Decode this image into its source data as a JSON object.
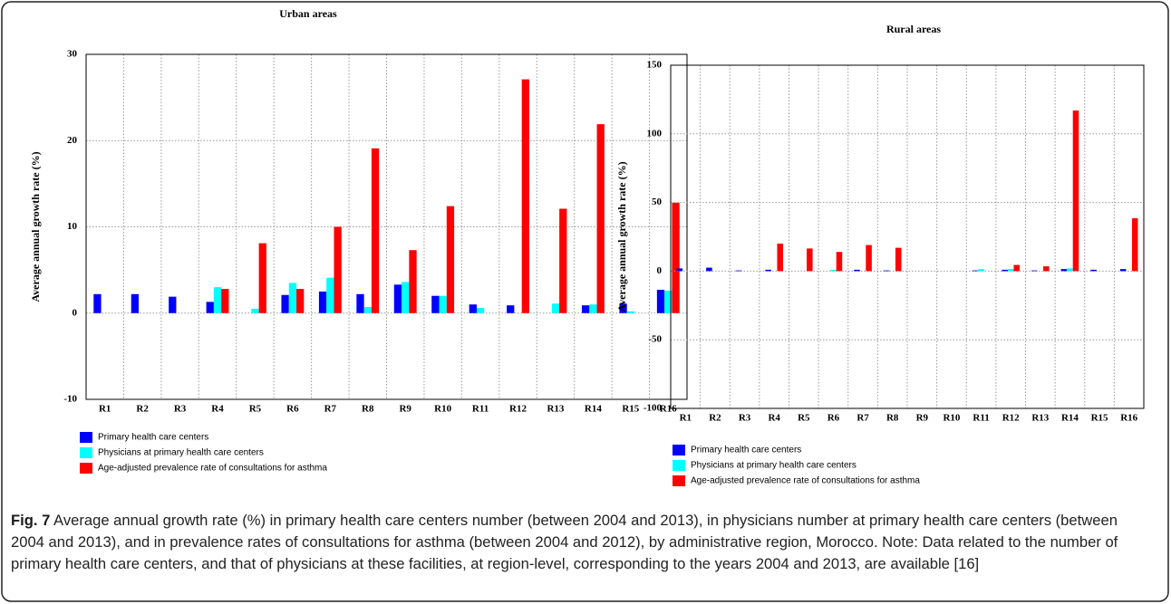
{
  "chart_data": [
    {
      "type": "bar",
      "title": "Urban areas",
      "y_label": "Average annual growth rate (%)",
      "categories": [
        "R1",
        "R2",
        "R3",
        "R4",
        "R5",
        "R6",
        "R7",
        "R8",
        "R9",
        "R10",
        "R11",
        "R12",
        "R13",
        "R14",
        "R15",
        "R16"
      ],
      "series": [
        {
          "name": "Primary health care centers",
          "color": "#0000ff",
          "values": [
            2.2,
            2.2,
            1.9,
            1.3,
            0,
            2.1,
            2.5,
            2.2,
            3.3,
            2.0,
            1.0,
            0.9,
            0,
            0.9,
            1.1,
            2.7
          ]
        },
        {
          "name": "Physicians at primary health care centers",
          "color": "#00ffff",
          "values": [
            0,
            0,
            0,
            3.0,
            0.5,
            3.5,
            4.1,
            0.7,
            3.6,
            2.0,
            0.6,
            0,
            1.1,
            1.0,
            0.2,
            2.6
          ]
        },
        {
          "name": "Age-adjusted prevalence rate of consultations for asthma",
          "color": "#ff0000",
          "values": [
            0,
            0,
            0,
            2.8,
            8.1,
            2.8,
            10.0,
            19.1,
            7.3,
            12.4,
            0,
            27.1,
            12.1,
            21.9,
            0,
            12.8
          ]
        }
      ],
      "ylim": [
        -10,
        30
      ],
      "yticks": [
        -10,
        0,
        10,
        20,
        30
      ],
      "grid": true
    },
    {
      "type": "bar",
      "title": "Rural areas",
      "y_label": "Average annual growth rate (%)",
      "categories": [
        "R1",
        "R2",
        "R3",
        "R4",
        "R5",
        "R6",
        "R7",
        "R8",
        "R9",
        "R10",
        "R11",
        "R12",
        "R13",
        "R14",
        "R15",
        "R16"
      ],
      "series": [
        {
          "name": "Primary health care centers",
          "color": "#0000ff",
          "values": [
            2,
            2.5,
            0.5,
            1,
            0,
            0,
            1,
            0.5,
            0,
            0,
            0.5,
            1,
            0.5,
            1.5,
            1,
            1.5
          ]
        },
        {
          "name": "Physicians at primary health care centers",
          "color": "#00ffff",
          "values": [
            0,
            0,
            0,
            0,
            0,
            1,
            0,
            0,
            0,
            0,
            1.5,
            1.5,
            0,
            2,
            0,
            0
          ]
        },
        {
          "name": "Age-adjusted prevalence rate of consultations for asthma",
          "color": "#ff0000",
          "values": [
            0,
            0,
            0,
            20,
            16.5,
            14,
            19,
            17,
            0,
            0,
            0,
            4.5,
            3.5,
            117,
            0,
            38.5
          ]
        }
      ],
      "ylim": [
        -100,
        150
      ],
      "yticks": [
        -100,
        -50,
        0,
        50,
        100,
        150
      ],
      "grid": true
    }
  ],
  "caption": {
    "label": "Fig. 7",
    "text": "Average annual growth rate (%) in primary health care centers number (between 2004 and 2013), in physicians number at primary health care centers (between 2004 and 2013), and in prevalence rates of consultations for asthma (between 2004 and 2012), by administrative region, Morocco. Note: Data related to the number of primary health care centers, and that of physicians at these facilities, at region-level, corresponding to the years 2004 and 2013, are available [16]"
  }
}
